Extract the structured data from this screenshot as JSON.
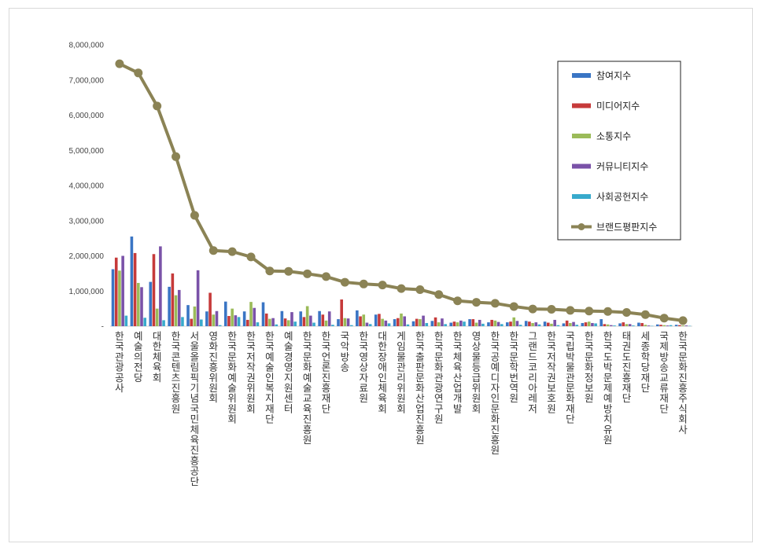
{
  "colors": {
    "참여지수": "#3a75c4",
    "미디어지수": "#c63a3a",
    "소통지수": "#9bbb59",
    "커뮤니티지수": "#7a52a8",
    "사회공헌지수": "#38aacc",
    "브랜드평판지수": "#8b8355"
  },
  "chart_data": {
    "type": "bar",
    "title": "",
    "xlabel": "",
    "ylabel": "",
    "ylim": [
      0,
      8000000
    ],
    "yticks": [
      "-",
      "1,000,000",
      "2,000,000",
      "3,000,000",
      "4,000,000",
      "5,000,000",
      "6,000,000",
      "7,000,000",
      "8,000,000"
    ],
    "grid": false,
    "legend_position": "right",
    "categories": [
      "한국관광공사",
      "예술의전당",
      "대한체육회",
      "한국콘텐츠진흥원",
      "서울올림픽기념국민체육진흥공단",
      "영화진흥위원회",
      "한국문화예술위원회",
      "한국저작권위원회",
      "한국예술인복지재단",
      "예술경영지원센터",
      "한국문화예술교육진흥원",
      "한국언론진흥재단",
      "국악방송",
      "한국영상자료원",
      "대한장애인체육회",
      "게임물관리위원회",
      "한국출판문화산업진흥원",
      "한국문화관광연구원",
      "한국체육산업개발",
      "영상물등급위원회",
      "한국공예디자인문화진흥원",
      "한국문학번역원",
      "그랜드코리아레저",
      "한국저작권보호원",
      "국립박물관문화재단",
      "한국문화정보원",
      "한국도박문제예방치유원",
      "태권도진흥재단",
      "세종학당재단",
      "국제방송교류재단",
      "한국문화진흥주식회사"
    ],
    "series": [
      {
        "name": "참여지수",
        "type": "bar",
        "values": [
          1620000,
          2550000,
          1260000,
          1120000,
          600000,
          420000,
          700000,
          420000,
          680000,
          430000,
          420000,
          430000,
          200000,
          450000,
          330000,
          200000,
          140000,
          150000,
          100000,
          200000,
          110000,
          110000,
          150000,
          130000,
          80000,
          90000,
          200000,
          80000,
          100000,
          50000,
          40000
        ]
      },
      {
        "name": "미디어지수",
        "type": "bar",
        "values": [
          1950000,
          2080000,
          2050000,
          1500000,
          210000,
          950000,
          290000,
          180000,
          360000,
          220000,
          260000,
          330000,
          760000,
          280000,
          350000,
          230000,
          210000,
          250000,
          130000,
          200000,
          180000,
          130000,
          130000,
          100000,
          160000,
          110000,
          60000,
          110000,
          90000,
          40000,
          30000
        ]
      },
      {
        "name": "소통지수",
        "type": "bar",
        "values": [
          1580000,
          1230000,
          500000,
          880000,
          560000,
          330000,
          500000,
          690000,
          210000,
          170000,
          570000,
          160000,
          230000,
          330000,
          210000,
          360000,
          200000,
          110000,
          110000,
          100000,
          160000,
          250000,
          90000,
          70000,
          90000,
          130000,
          50000,
          60000,
          40000,
          30000,
          20000
        ]
      },
      {
        "name": "커뮤니티지수",
        "type": "bar",
        "values": [
          2000000,
          1110000,
          2270000,
          1030000,
          1590000,
          430000,
          310000,
          520000,
          230000,
          400000,
          300000,
          420000,
          220000,
          100000,
          160000,
          280000,
          300000,
          220000,
          160000,
          180000,
          120000,
          150000,
          110000,
          180000,
          120000,
          90000,
          30000,
          60000,
          20000,
          20000,
          20000
        ]
      },
      {
        "name": "사회공헌지수",
        "type": "bar",
        "values": [
          300000,
          240000,
          170000,
          260000,
          190000,
          30000,
          260000,
          110000,
          50000,
          130000,
          100000,
          40000,
          30000,
          60000,
          80000,
          50000,
          90000,
          60000,
          130000,
          70000,
          60000,
          40000,
          50000,
          30000,
          40000,
          80000,
          20000,
          20000,
          10000,
          30000,
          10000
        ]
      },
      {
        "name": "브랜드평판지수",
        "type": "line",
        "values": [
          7460000,
          7200000,
          6260000,
          4820000,
          3150000,
          2150000,
          2120000,
          1970000,
          1570000,
          1560000,
          1490000,
          1410000,
          1250000,
          1200000,
          1170000,
          1070000,
          1040000,
          900000,
          720000,
          680000,
          650000,
          560000,
          490000,
          480000,
          450000,
          430000,
          420000,
          390000,
          330000,
          230000,
          160000
        ]
      }
    ]
  }
}
